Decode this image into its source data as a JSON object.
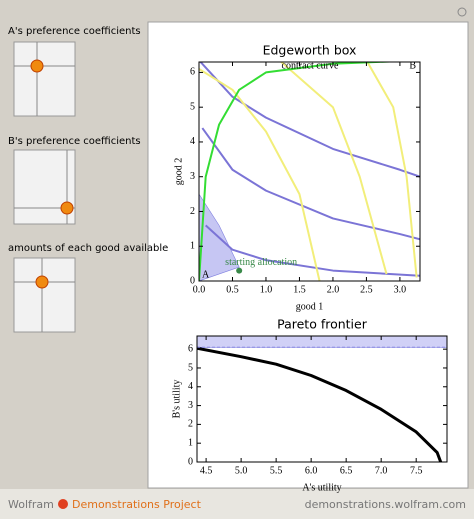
{
  "controls": [
    {
      "label": "A's preference coefficients"
    },
    {
      "label": "B's preference coefficients"
    },
    {
      "label": "amounts of each good available"
    }
  ],
  "chart_data": [
    {
      "type": "line",
      "title": "Edgeworth box",
      "xlabel": "good 1",
      "ylabel": "good 2",
      "xlim": [
        0,
        3.3
      ],
      "ylim": [
        0,
        6.3
      ],
      "xticks": [
        {
          "value": 0,
          "label": "0.0"
        },
        {
          "value": 0.5,
          "label": "0.5"
        },
        {
          "value": 1,
          "label": "1.0"
        },
        {
          "value": 1.5,
          "label": "1.5"
        },
        {
          "value": 2,
          "label": "2.0"
        },
        {
          "value": 2.5,
          "label": "2.5"
        },
        {
          "value": 3,
          "label": "3.0"
        }
      ],
      "yticks": [
        0,
        1,
        2,
        3,
        4,
        5,
        6
      ],
      "annotations": [
        "contract curve",
        "A",
        "B"
      ],
      "series": [
        {
          "type": "area",
          "color": "#b8b8f0",
          "x": [
            0,
            0.3,
            0.6,
            0
          ],
          "values": [
            2.5,
            1.6,
            0.4,
            0
          ]
        },
        {
          "color": "#7b74d6",
          "x": [
            0,
            0.5,
            1,
            2,
            3,
            3.3
          ],
          "values": [
            6.35,
            5.3,
            4.7,
            3.8,
            3.2,
            3.0
          ]
        },
        {
          "color": "#7b74d6",
          "x": [
            0.05,
            0.5,
            1,
            2,
            3,
            3.3
          ],
          "values": [
            4.4,
            3.2,
            2.6,
            1.8,
            1.35,
            1.2
          ]
        },
        {
          "color": "#7b74d6",
          "x": [
            0.1,
            0.5,
            1,
            2,
            3.3
          ],
          "values": [
            1.6,
            0.9,
            0.6,
            0.3,
            0.15
          ]
        },
        {
          "color": "#f2ee7a",
          "x": [
            0,
            0.5,
            1,
            1.5,
            1.8
          ],
          "values": [
            6.1,
            5.5,
            4.3,
            2.5,
            0
          ]
        },
        {
          "color": "#f2ee7a",
          "x": [
            1.2,
            2,
            2.4,
            2.8
          ],
          "values": [
            6.35,
            5,
            3,
            0.2
          ]
        },
        {
          "color": "#f2ee7a",
          "x": [
            2.5,
            2.9,
            3.1,
            3.25
          ],
          "values": [
            6.35,
            5,
            3,
            0.1
          ]
        },
        {
          "color": "#33dd33",
          "x": [
            0,
            0.1,
            0.3,
            0.6,
            1,
            2,
            3.3
          ],
          "values": [
            0,
            3,
            4.5,
            5.5,
            6,
            6.25,
            6.35
          ]
        }
      ],
      "points": [
        {
          "x": 0.6,
          "y": 0.3,
          "label": "starting allocation",
          "color": "#3a8a4a"
        }
      ]
    },
    {
      "type": "line",
      "title": "Pareto frontier",
      "xlabel": "A's utility",
      "ylabel": "B's utility",
      "xlim": [
        4.37,
        7.94
      ],
      "ylim": [
        0,
        6.7
      ],
      "xticks": [
        4.5,
        {
          "value": 5,
          "label": "5.0"
        },
        5.5,
        {
          "value": 6,
          "label": "6.0"
        },
        6.5,
        {
          "value": 7,
          "label": "7.0"
        },
        7.5
      ],
      "yticks": [
        0,
        1,
        2,
        3,
        4,
        5,
        6
      ],
      "series": [
        {
          "type": "area",
          "color": "#c4c4f4",
          "x": [
            4.37,
            7.94,
            7.94,
            4.37
          ],
          "values": [
            6.1,
            6.1,
            6.7,
            6.7
          ]
        },
        {
          "color": "#000000",
          "x": [
            4.37,
            5,
            5.5,
            6,
            6.5,
            7,
            7.5,
            7.8,
            7.85
          ],
          "values": [
            6.05,
            5.6,
            5.2,
            4.6,
            3.8,
            2.8,
            1.6,
            0.5,
            0
          ]
        }
      ]
    }
  ],
  "footer": {
    "brand": "Wolfram",
    "project": "Demonstrations Project",
    "url": "demonstrations.wolfram.com"
  }
}
